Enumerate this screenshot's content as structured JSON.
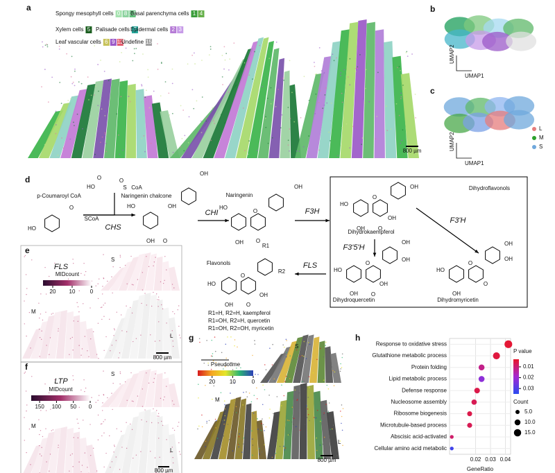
{
  "panels": {
    "a": {
      "label": "a",
      "legend": [
        {
          "name": "Spongy mesophyll cells",
          "codes": [
            "0",
            "8",
            "13"
          ]
        },
        {
          "name": "Basal parenchyma cells",
          "codes": [
            "1",
            "4"
          ]
        },
        {
          "name": "Xylem cells",
          "codes": [
            "5"
          ]
        },
        {
          "name": "Palisade cells",
          "codes": [
            "7"
          ]
        },
        {
          "name": "Epidermal cells",
          "codes": [
            "2",
            "3"
          ]
        },
        {
          "name": "Leaf vascular cells",
          "codes": [
            "6",
            "9",
            "12"
          ]
        },
        {
          "name": "Undefine",
          "codes": [
            "15"
          ]
        }
      ],
      "scale_bar": "800 µm"
    },
    "b": {
      "label": "b",
      "x_axis": "UMAP1",
      "y_axis": "UMAP2"
    },
    "c": {
      "label": "c",
      "x_axis": "UMAP1",
      "y_axis": "UMAP2",
      "legend": [
        "L",
        "M",
        "S"
      ]
    },
    "d": {
      "label": "d",
      "molecules": [
        {
          "name": "p-Coumaroyl CoA",
          "atoms": [
            "HO",
            "SCoA",
            "O"
          ]
        },
        {
          "name": null,
          "atoms": [
            "HO",
            "O",
            "O",
            "S",
            "CoA"
          ]
        },
        {
          "name": "Naringenin chalcone",
          "atoms": [
            "HO",
            "OH",
            "OH",
            "OH",
            "O"
          ]
        },
        {
          "name": "Naringenin",
          "atoms": [
            "HO",
            "O",
            "OH",
            "OH",
            "O"
          ]
        },
        {
          "name": "Dihydrokaempferol",
          "atoms": [
            "HO",
            "O",
            "OH",
            "OH",
            "OH",
            "O"
          ]
        },
        {
          "name": "Dihydroquercetin",
          "atoms": [
            "HO",
            "O",
            "OH",
            "OH",
            "OH",
            "OH",
            "O"
          ]
        },
        {
          "name": "Dihydromyricetin",
          "atoms": [
            "HO",
            "O",
            "OH",
            "OH",
            "OH",
            "O"
          ]
        },
        {
          "name": "Flavonols",
          "atoms": [
            "HO",
            "O",
            "OH",
            "OH",
            "O",
            "R1",
            "R2"
          ]
        }
      ],
      "enzymes": [
        "CHS",
        "CHI",
        "F3H",
        "F3'5'H",
        "F3'H",
        "FLS"
      ],
      "box_title": "Dihydroflavonols",
      "flavonol_notes": [
        "R1=H, R2=H, kaempferol",
        "R1=OH, R2=H, quercetin",
        "R1=OH, R2=OH, myricetin"
      ]
    },
    "e": {
      "label": "e",
      "gene": "FLS",
      "colorbar_title": "MIDcount",
      "colorbar_lim": [
        25,
        0
      ],
      "colorbar_ticks": [
        20,
        10,
        0
      ],
      "sections": [
        "S",
        "M",
        "L"
      ],
      "scale_bar": "800 µm"
    },
    "f": {
      "label": "f",
      "gene": "LTP",
      "colorbar_title": "MIDcount",
      "colorbar_lim": [
        175,
        0
      ],
      "colorbar_ticks": [
        150,
        100,
        50,
        0
      ],
      "sections": [
        "S",
        "M",
        "L"
      ],
      "scale_bar": "800 µm"
    },
    "g": {
      "label": "g",
      "colorbar_title": "Pseudotime",
      "colorbar_lim": [
        27,
        0
      ],
      "colorbar_ticks": [
        20,
        10,
        0
      ],
      "sections": [
        "S",
        "M",
        "L"
      ],
      "scale_bar": "800 µm"
    },
    "h": {
      "label": "h",
      "type": "dot",
      "categories": [
        "Response to oxidative stress",
        "Glutathione metabolic process",
        "Protein folding",
        "Lipid metabolic process",
        "Defense response",
        "Nucleosome assembly",
        "Ribosome biogenesis",
        "Microtubule-based process",
        "Abscisic acid-activated",
        "Cellular amino acid metabolic"
      ],
      "gene_ratio": [
        0.042,
        0.034,
        0.024,
        0.024,
        0.021,
        0.019,
        0.016,
        0.016,
        0.004,
        0.004
      ],
      "count": [
        17,
        14,
        10,
        10,
        9,
        8,
        7,
        7,
        4,
        4
      ],
      "p_value": [
        0.004,
        0.005,
        0.012,
        0.022,
        0.006,
        0.007,
        0.006,
        0.007,
        0.009,
        0.032
      ],
      "x_label": "GeneRatio",
      "xlim": [
        0.0025,
        0.0435
      ],
      "xticks": [
        0.02,
        0.03,
        0.04
      ],
      "p_title": "P value",
      "plim": [
        0.003,
        0.035
      ],
      "pticks": [
        0.01,
        0.02,
        0.03
      ],
      "count_title": "Count",
      "count_ticks": [
        {
          "value": 5,
          "label": "5.0"
        },
        {
          "value": 10,
          "label": "10.0"
        },
        {
          "value": 15,
          "label": "15.0"
        }
      ]
    }
  }
}
